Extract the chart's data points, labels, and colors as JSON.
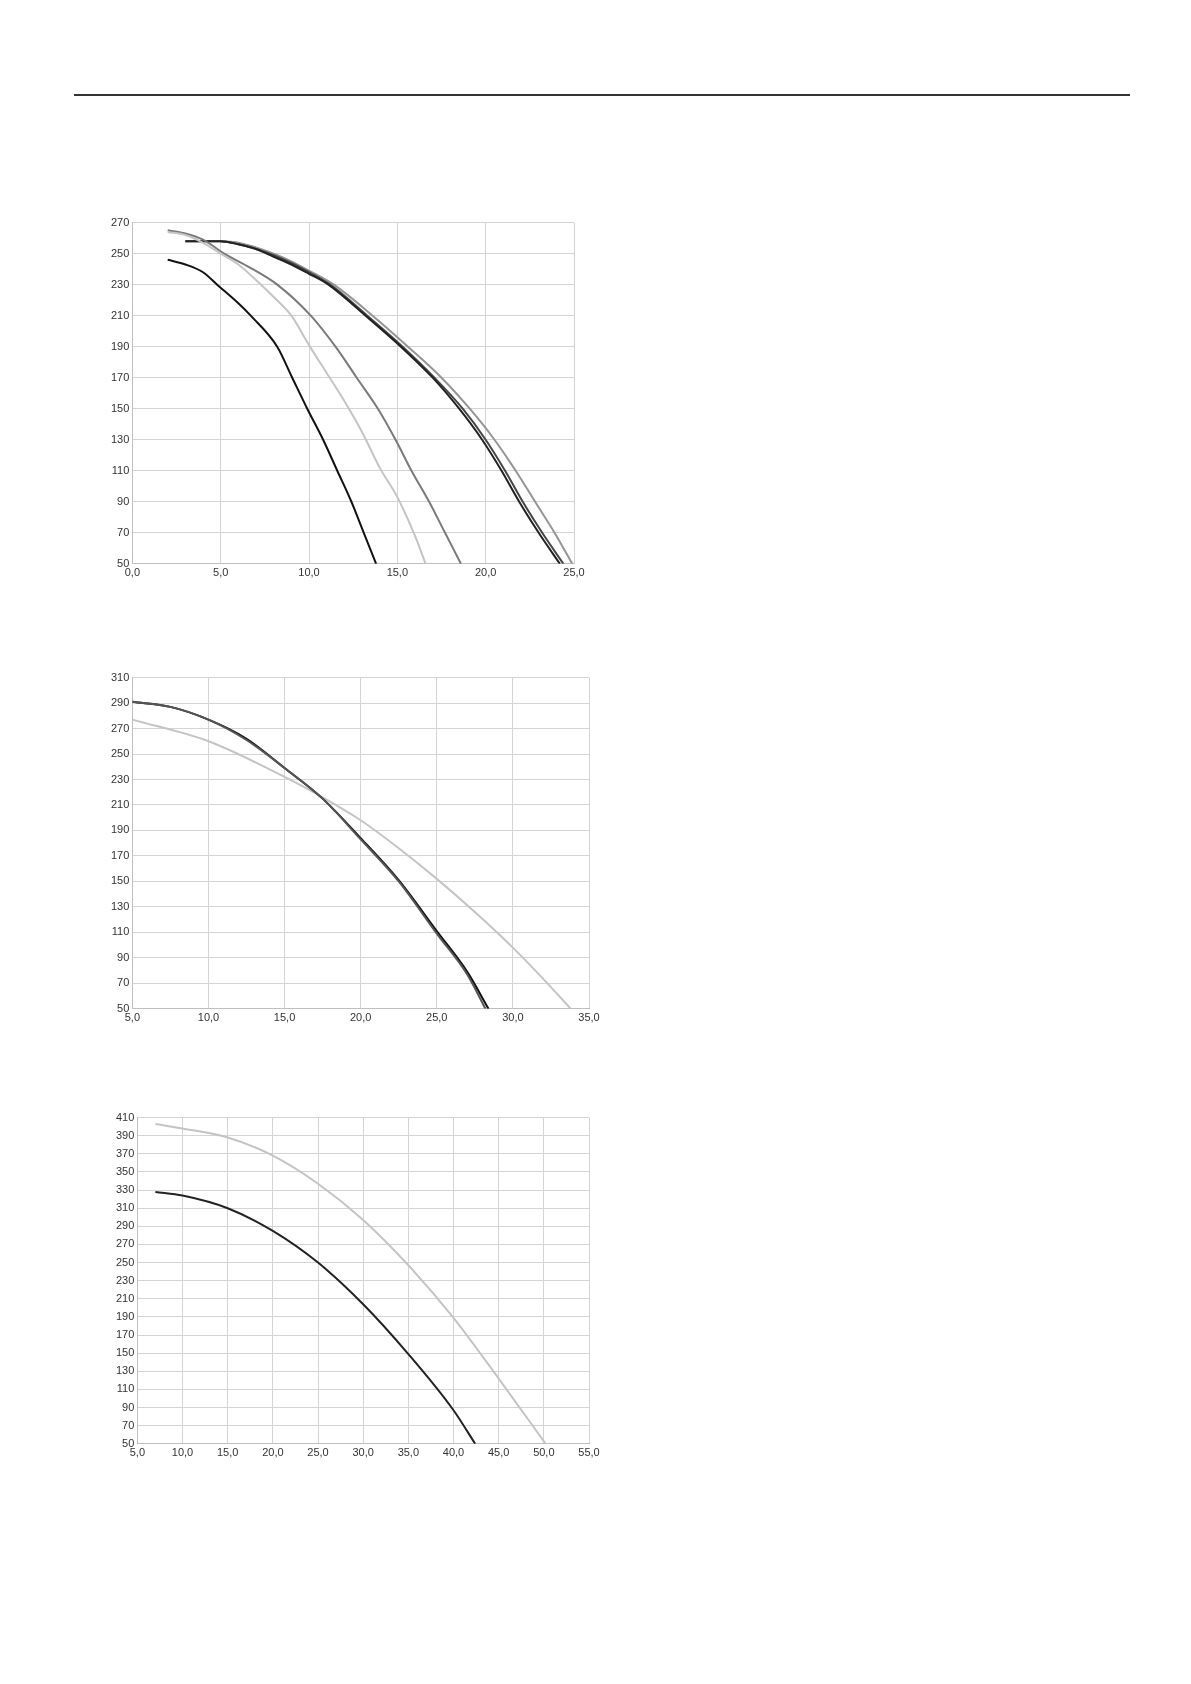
{
  "chart_data": [
    {
      "type": "line",
      "xlim": [
        0,
        25
      ],
      "ylim": [
        50,
        270
      ],
      "xticks": [
        {
          "value": 0,
          "label": "0,0"
        },
        {
          "value": 5,
          "label": "5,0"
        },
        {
          "value": 10,
          "label": "10,0"
        },
        {
          "value": 15,
          "label": "15,0"
        },
        {
          "value": 20,
          "label": "20,0"
        },
        {
          "value": 25,
          "label": "25,0"
        }
      ],
      "yticks": [
        50,
        70,
        90,
        110,
        130,
        150,
        170,
        190,
        210,
        230,
        250,
        270
      ],
      "grid": true,
      "legend": false,
      "marker": "none",
      "line_style": "solid",
      "series": [
        {
          "color": "#111111",
          "x": [
            2,
            3,
            4,
            4.8,
            6,
            6.7,
            8.2,
            9.05,
            9.9,
            10.8,
            11.6,
            12.4,
            13.1,
            13.8
          ],
          "values": [
            246,
            243,
            238,
            230,
            218,
            210,
            190,
            170,
            150,
            130,
            110,
            90,
            70,
            50
          ]
        },
        {
          "color": "#c4c4c4",
          "x": [
            2,
            3,
            4,
            5,
            6,
            7,
            8,
            9,
            10,
            11,
            12,
            13,
            14,
            15,
            16,
            16.6
          ],
          "values": [
            264,
            262,
            257,
            250,
            243,
            233,
            222,
            210,
            191,
            173,
            155,
            135,
            112,
            93,
            68,
            50
          ]
        },
        {
          "color": "#7a7a7a",
          "x": [
            2,
            3,
            4,
            5.2,
            6.5,
            8.2,
            10.1,
            11.5,
            12.7,
            13.9,
            14.9,
            15.8,
            16.8,
            17.7,
            18.6
          ],
          "values": [
            265,
            263,
            259,
            250,
            242,
            230,
            210,
            190,
            170,
            150,
            130,
            110,
            90,
            70,
            50
          ]
        },
        {
          "color": "#222222",
          "x": [
            3,
            4,
            5,
            6,
            7,
            8,
            9,
            10,
            11.1,
            13.2,
            15.2,
            17,
            18.5,
            19.8,
            20.9,
            21.9,
            23,
            24.2
          ],
          "values": [
            258,
            258,
            258,
            256,
            253,
            248,
            243,
            237,
            230,
            210,
            190,
            170,
            150,
            130,
            110,
            90,
            70,
            50
          ]
        },
        {
          "color": "#454545",
          "x": [
            3,
            4,
            5,
            6,
            7,
            8,
            9,
            10,
            11.2,
            13.3,
            15.3,
            17.1,
            18.7,
            20,
            21.1,
            22.1,
            23.2,
            24.4
          ],
          "values": [
            258,
            258,
            258,
            256,
            253,
            249,
            244,
            238,
            230,
            210,
            190,
            170,
            150,
            130,
            110,
            90,
            70,
            50
          ]
        },
        {
          "color": "#959595",
          "x": [
            5,
            6,
            7,
            8,
            9,
            10,
            11.4,
            13.6,
            15.6,
            17.5,
            19.1,
            20.5,
            21.7,
            22.8,
            23.9,
            24.9
          ],
          "values": [
            258,
            257,
            254,
            250,
            245,
            239,
            230,
            210,
            190,
            170,
            150,
            130,
            110,
            90,
            70,
            50
          ]
        }
      ]
    },
    {
      "type": "line",
      "xlim": [
        5,
        35
      ],
      "ylim": [
        50,
        310
      ],
      "xticks": [
        {
          "value": 5,
          "label": "5,0"
        },
        {
          "value": 10,
          "label": "10,0"
        },
        {
          "value": 15,
          "label": "15,0"
        },
        {
          "value": 20,
          "label": "20,0"
        },
        {
          "value": 25,
          "label": "25,0"
        },
        {
          "value": 30,
          "label": "30,0"
        },
        {
          "value": 35,
          "label": "35,0"
        }
      ],
      "yticks": [
        50,
        70,
        90,
        110,
        130,
        150,
        170,
        190,
        210,
        230,
        250,
        270,
        290,
        310
      ],
      "grid": true,
      "legend": false,
      "marker": "none",
      "line_style": "solid",
      "series": [
        {
          "color": "#555555",
          "x": [
            5,
            7.5,
            10,
            12.5,
            15,
            17.5,
            20,
            22.5,
            25,
            27,
            28.2
          ],
          "values": [
            291,
            287,
            277,
            261,
            239,
            215,
            183,
            150,
            109,
            77,
            50
          ]
        },
        {
          "color": "#111111",
          "x": [
            5,
            7.5,
            10,
            12.5,
            15,
            17.5,
            20,
            22.5,
            25,
            27,
            28.4
          ],
          "values": [
            291,
            287,
            277,
            262,
            239,
            215,
            184,
            151,
            111,
            79,
            50
          ]
        },
        {
          "color": "#c4c4c4",
          "x": [
            5,
            10,
            15,
            17.5,
            20,
            22.5,
            25,
            27.5,
            30,
            32.5,
            33.8
          ],
          "values": [
            277,
            260,
            232,
            216,
            198,
            176,
            152,
            126,
            98,
            67,
            50
          ]
        }
      ]
    },
    {
      "type": "line",
      "xlim": [
        5,
        55
      ],
      "ylim": [
        50,
        410
      ],
      "xticks": [
        {
          "value": 5,
          "label": "5,0"
        },
        {
          "value": 10,
          "label": "10,0"
        },
        {
          "value": 15,
          "label": "15,0"
        },
        {
          "value": 20,
          "label": "20,0"
        },
        {
          "value": 25,
          "label": "25,0"
        },
        {
          "value": 30,
          "label": "30,0"
        },
        {
          "value": 35,
          "label": "35,0"
        },
        {
          "value": 40,
          "label": "40,0"
        },
        {
          "value": 45,
          "label": "45,0"
        },
        {
          "value": 50,
          "label": "50,0"
        },
        {
          "value": 55,
          "label": "55,0"
        }
      ],
      "yticks": [
        50,
        70,
        90,
        110,
        130,
        150,
        170,
        190,
        210,
        230,
        250,
        270,
        290,
        310,
        330,
        350,
        370,
        390,
        410
      ],
      "grid": true,
      "legend": false,
      "marker": "none",
      "line_style": "solid",
      "series": [
        {
          "color": "#c4c4c4",
          "x": [
            7,
            10,
            15,
            20,
            25,
            30,
            35,
            40,
            45,
            50.2
          ],
          "values": [
            403,
            398,
            388,
            368,
            337,
            297,
            247,
            189,
            122,
            50
          ]
        },
        {
          "color": "#222222",
          "x": [
            7,
            10,
            15,
            20,
            25,
            30,
            35,
            40,
            42.4
          ],
          "values": [
            328,
            324,
            310,
            285,
            250,
            204,
            149,
            87,
            50
          ]
        }
      ]
    }
  ]
}
